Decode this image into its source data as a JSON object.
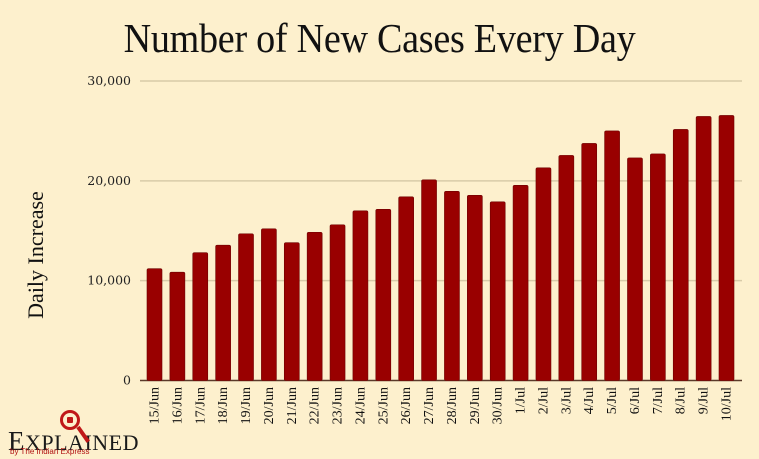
{
  "chart_data": {
    "type": "bar",
    "title": "Number of New Cases Every Day",
    "xlabel": "",
    "ylabel": "Daily Increase",
    "ylim": [
      0,
      30000
    ],
    "yticks": [
      0,
      10000,
      20000,
      30000
    ],
    "ytick_labels": [
      "0",
      "10,000",
      "20,000",
      "30,000"
    ],
    "grid": true,
    "bar_color": "#990000",
    "categories": [
      "15/Jun",
      "16/Jun",
      "17/Jun",
      "18/Jun",
      "19/Jun",
      "20/Jun",
      "21/Jun",
      "22/Jun",
      "23/Jun",
      "24/Jun",
      "25/Jun",
      "26/Jun",
      "27/Jun",
      "28/Jun",
      "29/Jun",
      "30/Jun",
      "1/Jul",
      "2/Jul",
      "3/Jul",
      "4/Jul",
      "5/Jul",
      "6/Jul",
      "7/Jul",
      "8/Jul",
      "9/Jul",
      "10/Jul"
    ],
    "values": [
      11200,
      10850,
      12800,
      13550,
      14700,
      15200,
      13800,
      14850,
      15600,
      17000,
      17150,
      18400,
      20100,
      18950,
      18550,
      17900,
      19550,
      21300,
      22550,
      23750,
      25000,
      22300,
      22700,
      25150,
      26450,
      26550
    ]
  },
  "branding": {
    "logo_text_first": "E",
    "logo_text_rest": "XPLAINED",
    "logo_subtitle": "by The Indian Express"
  }
}
